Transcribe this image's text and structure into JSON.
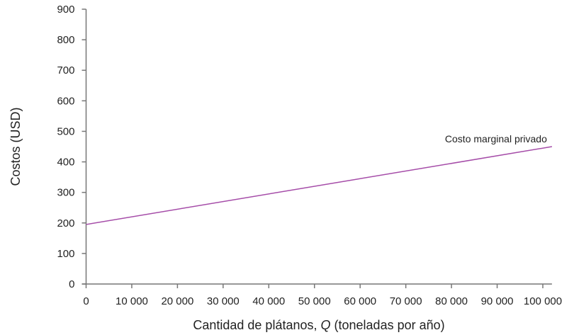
{
  "chart_data": {
    "type": "line",
    "xlabel": "Cantidad de plátanos, Q (toneladas por año)",
    "xlabel_parts": [
      "Cantidad de plátanos, ",
      "Q",
      " (toneladas por año)"
    ],
    "ylabel": "Costos (USD)",
    "xlim": [
      0,
      102000
    ],
    "ylim": [
      0,
      900
    ],
    "xticks": [
      "0",
      "10 000",
      "20 000",
      "30 000",
      "40 000",
      "50 000",
      "60 000",
      "70 000",
      "80 000",
      "90 000",
      "100 000"
    ],
    "xtick_values": [
      0,
      10000,
      20000,
      30000,
      40000,
      50000,
      60000,
      70000,
      80000,
      90000,
      100000
    ],
    "yticks": [
      "0",
      "100",
      "200",
      "300",
      "400",
      "500",
      "600",
      "700",
      "800",
      "900"
    ],
    "ytick_values": [
      0,
      100,
      200,
      300,
      400,
      500,
      600,
      700,
      800,
      900
    ],
    "grid": false,
    "series": [
      {
        "name": "Costo marginal privado",
        "color": "#a54ca8",
        "x": [
          0,
          102000
        ],
        "y": [
          195,
          450
        ]
      }
    ]
  }
}
